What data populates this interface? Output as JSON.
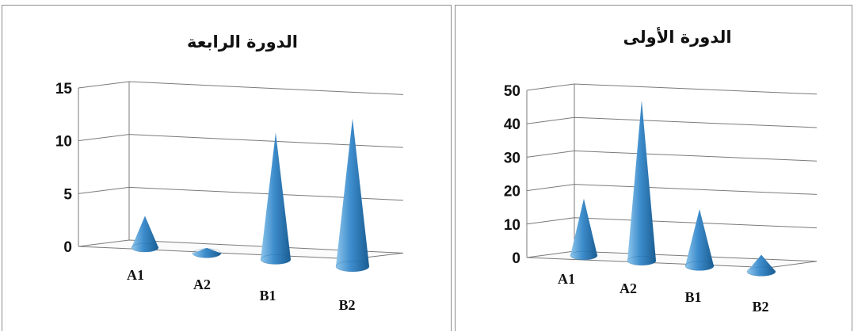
{
  "chart_data": [
    {
      "type": "bar",
      "shape": "3d-cone",
      "title": "الدورة الرابعة",
      "categories": [
        "A1",
        "A2",
        "B1",
        "B2"
      ],
      "values": [
        3,
        0.5,
        12,
        14
      ],
      "yticks": [
        "0",
        "5",
        "10",
        "15"
      ],
      "ylim": [
        0,
        15
      ],
      "grid": true,
      "colors": {
        "cone": "#3d8ccc",
        "cone_dark": "#1a5d92",
        "cone_light": "#8ec6ec",
        "grid": "#7a7a7a"
      }
    },
    {
      "type": "bar",
      "shape": "3d-cone",
      "title": "الدورة الأولى",
      "categories": [
        "A1",
        "A2",
        "B1",
        "B2"
      ],
      "values": [
        17,
        48,
        17,
        5
      ],
      "yticks": [
        "0",
        "10",
        "20",
        "30",
        "40",
        "50"
      ],
      "ylim": [
        0,
        50
      ],
      "grid": true,
      "colors": {
        "cone": "#3d8ccc",
        "cone_dark": "#1a5d92",
        "cone_light": "#8ec6ec",
        "grid": "#7a7a7a"
      }
    }
  ]
}
